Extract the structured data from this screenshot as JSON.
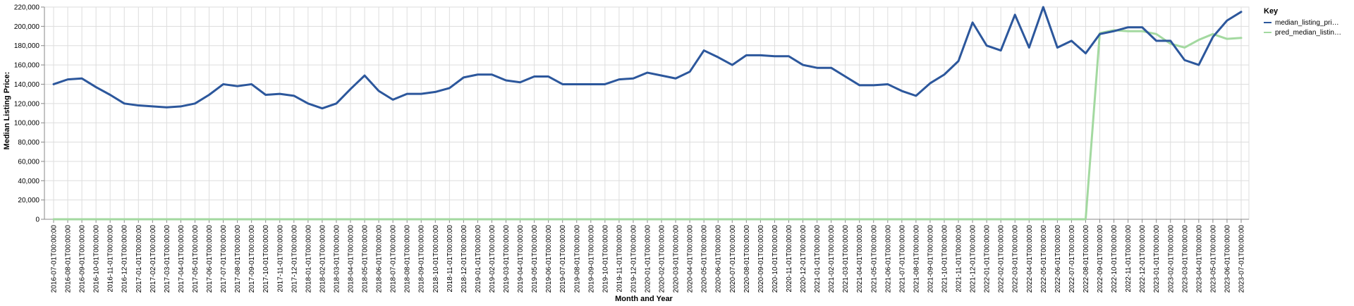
{
  "chart_data": {
    "type": "line",
    "xlabel": "Month and Year",
    "ylabel": "Median Listing Price:",
    "ylim": [
      0,
      220000
    ],
    "yticks": [
      "0",
      "20,000",
      "40,000",
      "60,000",
      "80,000",
      "100,000",
      "120,000",
      "140,000",
      "160,000",
      "180,000",
      "200,000",
      "220,000"
    ],
    "grid": true,
    "legend_title": "Key",
    "legend_position": "right",
    "x": [
      "2016-07-01T00:00:00",
      "2016-08-01T00:00:00",
      "2016-09-01T00:00:00",
      "2016-10-01T00:00:00",
      "2016-11-01T00:00:00",
      "2016-12-01T00:00:00",
      "2017-01-01T00:00:00",
      "2017-02-01T00:00:00",
      "2017-03-01T00:00:00",
      "2017-04-01T00:00:00",
      "2017-05-01T00:00:00",
      "2017-06-01T00:00:00",
      "2017-07-01T00:00:00",
      "2017-08-01T00:00:00",
      "2017-09-01T00:00:00",
      "2017-10-01T00:00:00",
      "2017-11-01T00:00:00",
      "2017-12-01T00:00:00",
      "2018-01-01T00:00:00",
      "2018-02-01T00:00:00",
      "2018-03-01T00:00:00",
      "2018-04-01T00:00:00",
      "2018-05-01T00:00:00",
      "2018-06-01T00:00:00",
      "2018-07-01T00:00:00",
      "2018-08-01T00:00:00",
      "2018-09-01T00:00:00",
      "2018-10-01T00:00:00",
      "2018-11-01T00:00:00",
      "2018-12-01T00:00:00",
      "2019-01-01T00:00:00",
      "2019-02-01T00:00:00",
      "2019-03-01T00:00:00",
      "2019-04-01T00:00:00",
      "2019-05-01T00:00:00",
      "2019-06-01T00:00:00",
      "2019-07-01T00:00:00",
      "2019-08-01T00:00:00",
      "2019-09-01T00:00:00",
      "2019-10-01T00:00:00",
      "2019-11-01T00:00:00",
      "2019-12-01T00:00:00",
      "2020-01-01T00:00:00",
      "2020-02-01T00:00:00",
      "2020-03-01T00:00:00",
      "2020-04-01T00:00:00",
      "2020-05-01T00:00:00",
      "2020-06-01T00:00:00",
      "2020-07-01T00:00:00",
      "2020-08-01T00:00:00",
      "2020-09-01T00:00:00",
      "2020-10-01T00:00:00",
      "2020-11-01T00:00:00",
      "2020-12-01T00:00:00",
      "2021-01-01T00:00:00",
      "2021-02-01T00:00:00",
      "2021-03-01T00:00:00",
      "2021-04-01T00:00:00",
      "2021-05-01T00:00:00",
      "2021-06-01T00:00:00",
      "2021-07-01T00:00:00",
      "2021-08-01T00:00:00",
      "2021-09-01T00:00:00",
      "2021-10-01T00:00:00",
      "2021-11-01T00:00:00",
      "2021-12-01T00:00:00",
      "2022-01-01T00:00:00",
      "2022-02-01T00:00:00",
      "2022-03-01T00:00:00",
      "2022-04-01T00:00:00",
      "2022-05-01T00:00:00",
      "2022-06-01T00:00:00",
      "2022-07-01T00:00:00",
      "2022-08-01T00:00:00",
      "2022-09-01T00:00:00",
      "2022-10-01T00:00:00",
      "2022-11-01T00:00:00",
      "2022-12-01T00:00:00",
      "2023-01-01T00:00:00",
      "2023-02-01T00:00:00",
      "2023-03-01T00:00:00",
      "2023-04-01T00:00:00",
      "2023-05-01T00:00:00",
      "2023-06-01T00:00:00",
      "2023-07-01T00:00:00"
    ],
    "series": [
      {
        "name": "median_listing_pri…",
        "color": "#2c579c",
        "values": [
          140000,
          145000,
          146000,
          137000,
          129000,
          120000,
          118000,
          117000,
          116000,
          117000,
          120000,
          129000,
          140000,
          138000,
          140000,
          129000,
          130000,
          128000,
          120000,
          115000,
          120000,
          135000,
          149000,
          133000,
          124000,
          130000,
          130000,
          132000,
          136000,
          147000,
          150000,
          150000,
          144000,
          142000,
          148000,
          148000,
          140000,
          140000,
          140000,
          140000,
          145000,
          146000,
          152000,
          149000,
          146000,
          153000,
          175000,
          168000,
          160000,
          170000,
          170000,
          169000,
          169000,
          160000,
          157000,
          157000,
          148000,
          139000,
          139000,
          140000,
          133000,
          128000,
          141000,
          150000,
          164000,
          204000,
          180000,
          175000,
          212000,
          178000,
          220000,
          178000,
          185000,
          172000,
          192000,
          195000,
          199000,
          199000,
          185000,
          185000,
          165000,
          160000,
          189000,
          206000,
          215000
        ]
      },
      {
        "name": "pred_median_listin…",
        "color": "#a3d9a0",
        "values": [
          0,
          0,
          0,
          0,
          0,
          0,
          0,
          0,
          0,
          0,
          0,
          0,
          0,
          0,
          0,
          0,
          0,
          0,
          0,
          0,
          0,
          0,
          0,
          0,
          0,
          0,
          0,
          0,
          0,
          0,
          0,
          0,
          0,
          0,
          0,
          0,
          0,
          0,
          0,
          0,
          0,
          0,
          0,
          0,
          0,
          0,
          0,
          0,
          0,
          0,
          0,
          0,
          0,
          0,
          0,
          0,
          0,
          0,
          0,
          0,
          0,
          0,
          0,
          0,
          0,
          0,
          0,
          0,
          0,
          0,
          0,
          0,
          0,
          0,
          193000,
          196000,
          195000,
          195000,
          192000,
          182000,
          178000,
          186000,
          192000,
          187000,
          188000
        ]
      }
    ]
  }
}
